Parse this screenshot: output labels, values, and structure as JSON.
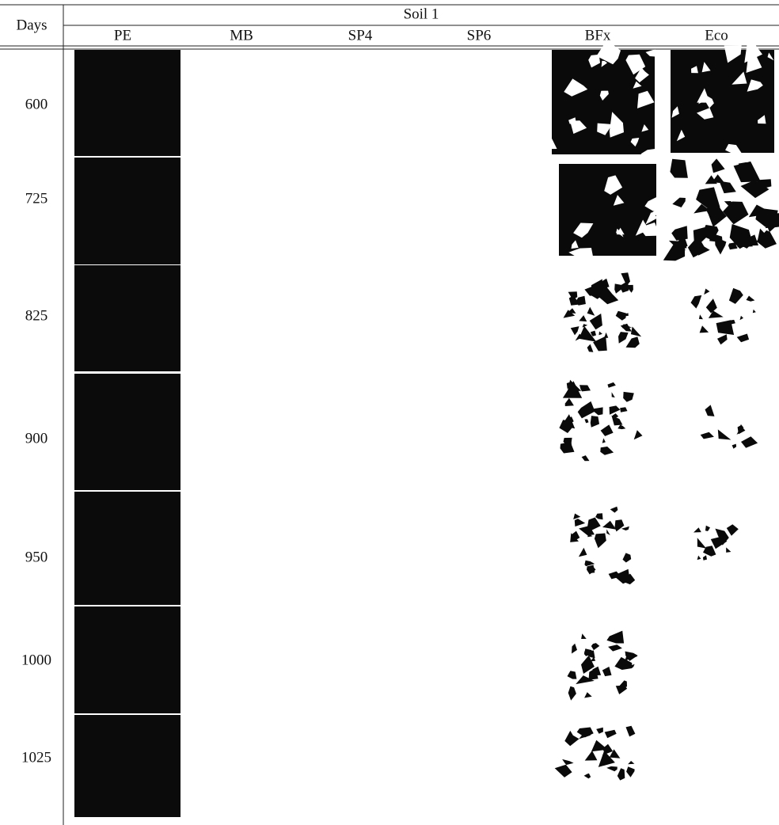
{
  "table": {
    "header": {
      "days": "Days",
      "group": "Soil 1",
      "columns": [
        "PE",
        "MB",
        "SP4",
        "SP6",
        "BFx",
        "Eco"
      ]
    },
    "rows": [
      {
        "day": "600"
      },
      {
        "day": "725"
      },
      {
        "day": "825"
      },
      {
        "day": "900"
      },
      {
        "day": "950"
      },
      {
        "day": "1000"
      },
      {
        "day": "1025"
      }
    ]
  }
}
